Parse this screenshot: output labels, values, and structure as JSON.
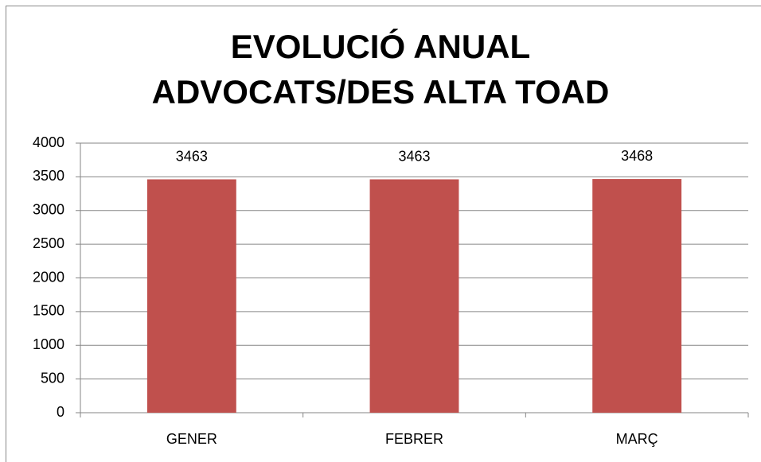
{
  "chart_data": {
    "type": "bar",
    "title": "EVOLUCIÓ ANUAL ADVOCATS/DES ALTA TOAD",
    "categories": [
      "GENER",
      "FEBRER",
      "MARÇ"
    ],
    "values": [
      3463,
      3463,
      3468
    ],
    "color": "#c0504d",
    "ylim": [
      0,
      4000
    ],
    "yticks": [
      0,
      500,
      1000,
      1500,
      2000,
      2500,
      3000,
      3500,
      4000
    ],
    "grid": true
  }
}
